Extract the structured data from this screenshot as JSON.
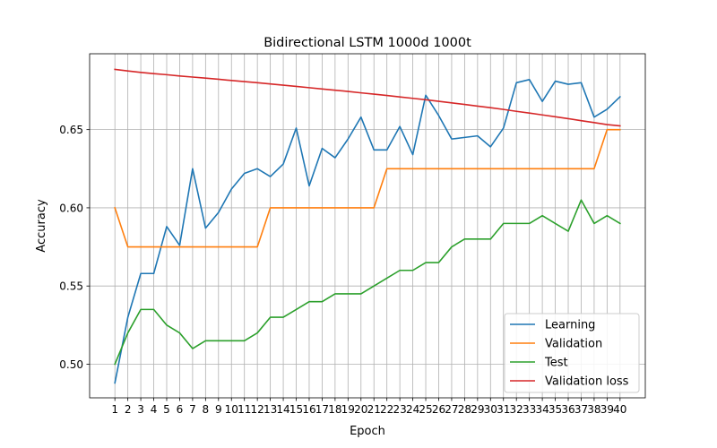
{
  "chart_data": {
    "type": "line",
    "title": "Bidirectional LSTM 1000d 1000t",
    "xlabel": "Epoch",
    "ylabel": "Accuracy",
    "x": [
      1,
      2,
      3,
      4,
      5,
      6,
      7,
      8,
      9,
      10,
      11,
      12,
      13,
      14,
      15,
      16,
      17,
      18,
      19,
      20,
      21,
      22,
      23,
      24,
      25,
      26,
      27,
      28,
      29,
      30,
      31,
      32,
      33,
      34,
      35,
      36,
      37,
      38,
      39,
      40
    ],
    "xlim": [
      -0.95,
      41.95
    ],
    "ylim": [
      0.4785,
      0.6985
    ],
    "yticks": [
      0.5,
      0.55,
      0.6,
      0.65
    ],
    "ytick_labels": [
      "0.50",
      "0.55",
      "0.60",
      "0.65"
    ],
    "grid": true,
    "legend_position": "lower right",
    "series": [
      {
        "name": "Learning",
        "color": "#1f77b4",
        "values": [
          0.488,
          0.53,
          0.558,
          0.558,
          0.588,
          0.576,
          0.625,
          0.587,
          0.597,
          0.612,
          0.622,
          0.625,
          0.62,
          0.628,
          0.651,
          0.614,
          0.638,
          0.632,
          0.644,
          0.658,
          0.637,
          0.637,
          0.652,
          0.634,
          0.672,
          0.659,
          0.644,
          0.645,
          0.646,
          0.639,
          0.651,
          0.68,
          0.682,
          0.668,
          0.681,
          0.679,
          0.68,
          0.658,
          0.663,
          0.671
        ]
      },
      {
        "name": "Validation",
        "color": "#ff7f0e",
        "values": [
          0.6,
          0.575,
          0.575,
          0.575,
          0.575,
          0.575,
          0.575,
          0.575,
          0.575,
          0.575,
          0.575,
          0.575,
          0.6,
          0.6,
          0.6,
          0.6,
          0.6,
          0.6,
          0.6,
          0.6,
          0.6,
          0.625,
          0.625,
          0.625,
          0.625,
          0.625,
          0.625,
          0.625,
          0.625,
          0.625,
          0.625,
          0.625,
          0.625,
          0.625,
          0.625,
          0.625,
          0.625,
          0.625,
          0.65,
          0.65
        ]
      },
      {
        "name": "Test",
        "color": "#2ca02c",
        "values": [
          0.5,
          0.52,
          0.535,
          0.535,
          0.525,
          0.52,
          0.51,
          0.515,
          0.515,
          0.515,
          0.515,
          0.52,
          0.53,
          0.53,
          0.535,
          0.54,
          0.54,
          0.545,
          0.545,
          0.545,
          0.55,
          0.555,
          0.56,
          0.56,
          0.565,
          0.565,
          0.575,
          0.58,
          0.58,
          0.58,
          0.59,
          0.59,
          0.59,
          0.595,
          0.59,
          0.585,
          0.605,
          0.59,
          0.595,
          0.59
        ]
      },
      {
        "name": "Validation loss",
        "color": "#d62728",
        "values": [
          0.6885,
          0.6875,
          0.6866,
          0.6858,
          0.6851,
          0.6843,
          0.6836,
          0.6829,
          0.6822,
          0.6814,
          0.6807,
          0.68,
          0.6792,
          0.6784,
          0.6776,
          0.6768,
          0.676,
          0.6752,
          0.6744,
          0.6735,
          0.6727,
          0.6718,
          0.6709,
          0.67,
          0.6691,
          0.6681,
          0.6671,
          0.6661,
          0.665,
          0.664,
          0.6629,
          0.6617,
          0.6606,
          0.6594,
          0.6582,
          0.657,
          0.6557,
          0.6545,
          0.6532,
          0.6524
        ]
      }
    ]
  }
}
